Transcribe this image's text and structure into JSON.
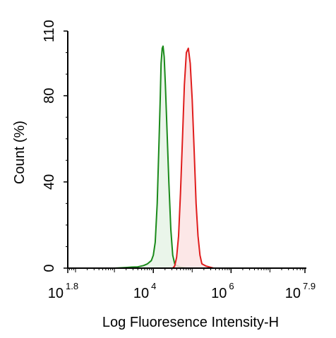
{
  "chart_data": {
    "type": "area",
    "title": "",
    "xlabel": "Log Fluoresence Intensity-H",
    "ylabel": "Count  (%)",
    "x_scale": "log",
    "xlim": [
      1.8,
      7.9
    ],
    "ylim": [
      0,
      110
    ],
    "x_ticks": [
      {
        "base": "10",
        "exp": "1.8",
        "value": 1.8
      },
      {
        "base": "10",
        "exp": "4",
        "value": 4
      },
      {
        "base": "10",
        "exp": "6",
        "value": 6
      },
      {
        "base": "10",
        "exp": "7.9",
        "value": 7.9
      }
    ],
    "y_ticks": [
      {
        "label": "0",
        "value": 0
      },
      {
        "label": "40",
        "value": 40
      },
      {
        "label": "80",
        "value": 80
      },
      {
        "label": "110",
        "value": 110
      }
    ],
    "grid": false,
    "legend": "none",
    "series": [
      {
        "color": "#1a8a1a",
        "fill": "#e6f3e6",
        "points": [
          [
            3.0,
            0
          ],
          [
            3.3,
            0.3
          ],
          [
            3.45,
            0.5
          ],
          [
            3.6,
            0.6
          ],
          [
            3.75,
            1.2
          ],
          [
            3.85,
            2
          ],
          [
            3.95,
            3.5
          ],
          [
            4.0,
            6
          ],
          [
            4.05,
            12
          ],
          [
            4.1,
            30
          ],
          [
            4.15,
            60
          ],
          [
            4.18,
            80
          ],
          [
            4.2,
            95
          ],
          [
            4.23,
            102
          ],
          [
            4.25,
            103
          ],
          [
            4.28,
            98
          ],
          [
            4.31,
            85
          ],
          [
            4.35,
            65
          ],
          [
            4.4,
            40
          ],
          [
            4.45,
            18
          ],
          [
            4.5,
            6
          ],
          [
            4.55,
            2
          ],
          [
            4.62,
            1
          ],
          [
            4.7,
            0.5
          ],
          [
            4.85,
            0
          ]
        ]
      },
      {
        "color": "#e01c1c",
        "fill": "#fbe3e3",
        "points": [
          [
            4.5,
            0
          ],
          [
            4.55,
            1
          ],
          [
            4.6,
            5
          ],
          [
            4.65,
            15
          ],
          [
            4.7,
            35
          ],
          [
            4.75,
            60
          ],
          [
            4.8,
            85
          ],
          [
            4.85,
            100
          ],
          [
            4.9,
            102
          ],
          [
            4.95,
            95
          ],
          [
            5.0,
            78
          ],
          [
            5.05,
            55
          ],
          [
            5.1,
            30
          ],
          [
            5.15,
            15
          ],
          [
            5.2,
            6
          ],
          [
            5.25,
            2
          ],
          [
            5.35,
            1
          ],
          [
            5.45,
            0.5
          ],
          [
            5.55,
            0
          ]
        ]
      }
    ]
  }
}
